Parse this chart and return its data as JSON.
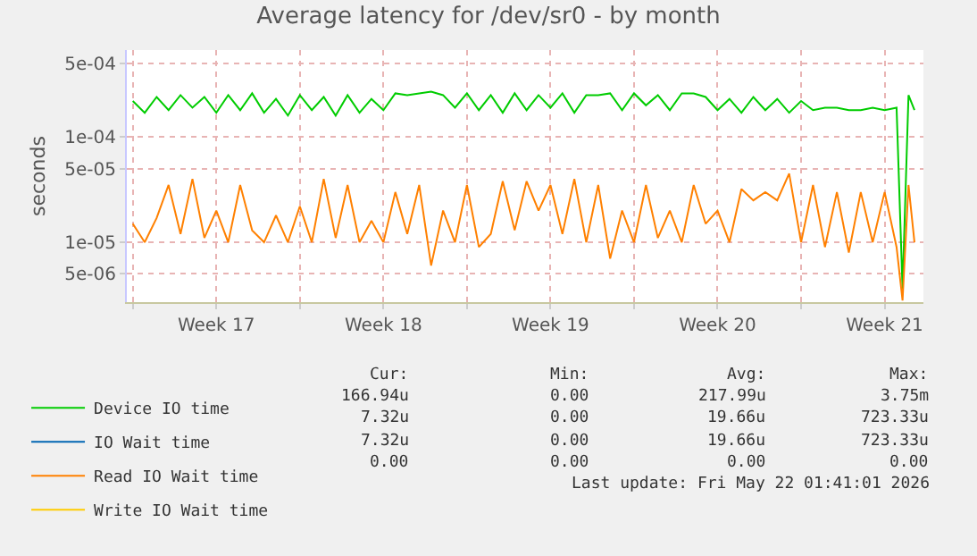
{
  "chart_data": {
    "type": "line",
    "title": "Average latency for /dev/sr0 - by month",
    "ylabel": "seconds",
    "x": [
      "2026-04-20T00:00",
      "2026-04-20T12:00",
      "2026-04-21T00:00",
      "2026-04-21T12:00",
      "2026-04-22T00:00",
      "2026-04-22T12:00",
      "2026-04-23T00:00",
      "2026-04-23T12:00",
      "2026-04-24T00:00",
      "2026-04-24T12:00",
      "2026-04-25T00:00",
      "2026-04-25T12:00",
      "2026-04-26T00:00",
      "2026-04-26T12:00",
      "2026-04-27T00:00",
      "2026-04-27T12:00",
      "2026-04-28T00:00",
      "2026-04-28T12:00",
      "2026-04-29T00:00",
      "2026-04-29T12:00",
      "2026-04-30T00:00",
      "2026-04-30T12:00",
      "2026-05-01T00:00",
      "2026-05-01T12:00",
      "2026-05-02T00:00",
      "2026-05-02T12:00",
      "2026-05-03T00:00",
      "2026-05-03T12:00",
      "2026-05-04T00:00",
      "2026-05-04T12:00",
      "2026-05-05T00:00",
      "2026-05-05T12:00",
      "2026-05-06T00:00",
      "2026-05-06T12:00",
      "2026-05-07T00:00",
      "2026-05-07T12:00",
      "2026-05-08T00:00",
      "2026-05-08T12:00",
      "2026-05-09T00:00",
      "2026-05-09T12:00",
      "2026-05-10T00:00",
      "2026-05-10T12:00",
      "2026-05-11T00:00",
      "2026-05-11T12:00",
      "2026-05-12T00:00",
      "2026-05-12T12:00",
      "2026-05-13T00:00",
      "2026-05-13T12:00",
      "2026-05-14T00:00",
      "2026-05-14T12:00",
      "2026-05-15T00:00",
      "2026-05-15T12:00",
      "2026-05-16T00:00",
      "2026-05-16T12:00",
      "2026-05-17T00:00",
      "2026-05-17T12:00",
      "2026-05-18T00:00",
      "2026-05-18T12:00",
      "2026-05-19T00:00",
      "2026-05-19T12:00",
      "2026-05-20T00:00",
      "2026-05-20T12:00",
      "2026-05-21T00:00",
      "2026-05-21T12:00",
      "2026-05-22T00:00",
      "2026-05-22T06:00",
      "2026-05-22T12:00",
      "2026-05-22T18:00"
    ],
    "series": [
      {
        "name": "Device IO time",
        "color": "#00cc00",
        "values": [
          0.00022,
          0.00017,
          0.00024,
          0.00018,
          0.00025,
          0.00019,
          0.00024,
          0.00017,
          0.00025,
          0.00018,
          0.00026,
          0.00017,
          0.00023,
          0.00016,
          0.00025,
          0.00018,
          0.00024,
          0.00016,
          0.00025,
          0.00017,
          0.00023,
          0.00018,
          0.00026,
          0.00025,
          0.00026,
          0.00027,
          0.00025,
          0.00019,
          0.00026,
          0.00018,
          0.00025,
          0.00017,
          0.00026,
          0.00018,
          0.00025,
          0.00019,
          0.00026,
          0.00017,
          0.00025,
          0.00025,
          0.00026,
          0.00018,
          0.00026,
          0.0002,
          0.00025,
          0.00018,
          0.00026,
          0.00026,
          0.00024,
          0.00018,
          0.00023,
          0.00017,
          0.00024,
          0.00018,
          0.00023,
          0.00017,
          0.00022,
          0.00018,
          0.00019,
          0.00019,
          0.00018,
          0.00018,
          0.00019,
          0.00018,
          0.00019,
          3.6e-06,
          0.00025,
          0.00018
        ]
      },
      {
        "name": "IO Wait time",
        "color": "#0066b3",
        "values": [
          null,
          null,
          null,
          null,
          null,
          null,
          null,
          null,
          null,
          null,
          null,
          null,
          null,
          null,
          null,
          null,
          null,
          null,
          null,
          null,
          null,
          null,
          null,
          null,
          null,
          null,
          null,
          null,
          null,
          null,
          null,
          null,
          null,
          null,
          null,
          null,
          null,
          null,
          null,
          null,
          null,
          null,
          null,
          null,
          null,
          null,
          null,
          null,
          null,
          null,
          null,
          null,
          null,
          null,
          null,
          null,
          null,
          null,
          null,
          null,
          null,
          null,
          null,
          null,
          null,
          null,
          null,
          null
        ]
      },
      {
        "name": "Read IO Wait time",
        "color": "#ff8000",
        "values": [
          1.5e-05,
          1e-05,
          1.7e-05,
          3.5e-05,
          1.2e-05,
          4e-05,
          1.1e-05,
          2e-05,
          1e-05,
          3.5e-05,
          1.3e-05,
          1e-05,
          1.8e-05,
          1e-05,
          2.2e-05,
          1e-05,
          4e-05,
          1.1e-05,
          3.5e-05,
          1e-05,
          1.6e-05,
          1e-05,
          3e-05,
          1.2e-05,
          3.5e-05,
          6e-06,
          2e-05,
          1e-05,
          3.5e-05,
          9e-06,
          1.2e-05,
          3.8e-05,
          1.3e-05,
          3.8e-05,
          2e-05,
          3.5e-05,
          1.2e-05,
          4e-05,
          1e-05,
          3.5e-05,
          7e-06,
          2e-05,
          1e-05,
          3.5e-05,
          1.1e-05,
          2e-05,
          1e-05,
          3.5e-05,
          1.5e-05,
          2e-05,
          1e-05,
          3.2e-05,
          2.5e-05,
          3e-05,
          2.5e-05,
          4.5e-05,
          1e-05,
          3.5e-05,
          9e-06,
          3e-05,
          8e-06,
          3e-05,
          1e-05,
          3e-05,
          9e-06,
          2.8e-06,
          3.5e-05,
          1e-05
        ]
      },
      {
        "name": "Write IO Wait time",
        "color": "#ffcc00",
        "values": [
          null,
          null,
          null,
          null,
          null,
          null,
          null,
          null,
          null,
          null,
          null,
          null,
          null,
          null,
          null,
          null,
          null,
          null,
          null,
          null,
          null,
          null,
          null,
          null,
          null,
          null,
          null,
          null,
          null,
          null,
          null,
          null,
          null,
          null,
          null,
          null,
          null,
          null,
          null,
          null,
          null,
          null,
          null,
          null,
          null,
          null,
          null,
          null,
          null,
          null,
          null,
          null,
          null,
          null,
          null,
          null,
          null,
          null,
          null,
          null,
          null,
          null,
          null,
          null,
          null,
          null,
          null,
          null
        ]
      }
    ],
    "log": true,
    "ylim": [
      2.7e-06,
      0.00067
    ],
    "yticks": [
      {
        "value": 5e-06,
        "label": "5e-06"
      },
      {
        "value": 1e-05,
        "label": "1e-05"
      },
      {
        "value": 5e-05,
        "label": "5e-05"
      },
      {
        "value": 0.0001,
        "label": "1e-04"
      },
      {
        "value": 0.0005,
        "label": "5e-04"
      }
    ],
    "xlim": [
      "2026-04-19T18:00",
      "2026-05-23T03:00"
    ],
    "xticks": [
      {
        "value": "2026-04-20",
        "label": null
      },
      {
        "value": "2026-04-23T12:00",
        "label": "Week 17"
      },
      {
        "value": "2026-04-27",
        "label": null
      },
      {
        "value": "2026-04-30T12:00",
        "label": "Week 18"
      },
      {
        "value": "2026-05-04",
        "label": null
      },
      {
        "value": "2026-05-07T12:00",
        "label": "Week 19"
      },
      {
        "value": "2026-05-11",
        "label": null
      },
      {
        "value": "2026-05-14T12:00",
        "label": "Week 20"
      },
      {
        "value": "2026-05-18",
        "label": null
      },
      {
        "value": "2026-05-21T12:00",
        "label": "Week 21"
      }
    ],
    "grid": true,
    "legend": "bottom left",
    "marker": "none",
    "line_style": "solid",
    "annotations": [
      "Cur:",
      "Min:",
      "Avg:",
      "Max:",
      "166.94u",
      "0.00",
      "217.99u",
      "3.75m",
      "7.32u",
      "0.00",
      "19.66u",
      "723.33u",
      "7.32u",
      "0.00",
      "19.66u",
      "723.33u",
      "0.00",
      "0.00",
      "0.00",
      "0.00",
      "Last update: Fri May 22 01:41:01 2026"
    ]
  }
}
